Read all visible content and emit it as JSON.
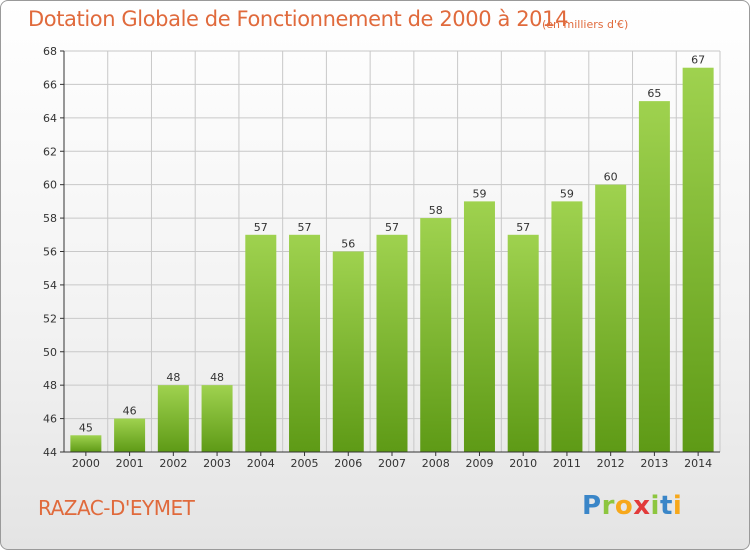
{
  "title": "Dotation Globale de Fonctionnement de 2000 à 2014",
  "subtitle": "(en milliers d'€)",
  "commune": "RAZAC-D'EYMET",
  "brand": {
    "letters": [
      "P",
      "r",
      "o",
      "x",
      "i",
      "t",
      "i"
    ],
    "colors": [
      "#3a86c8",
      "#8dc63f",
      "#f7a81b",
      "#e23a3a",
      "#8dc63f",
      "#3a86c8",
      "#f7a81b"
    ]
  },
  "colors": {
    "title": "#e06a3c",
    "bar_top": "#9fd24f",
    "bar_bottom": "#5e9a16",
    "grid": "#c8c8c8",
    "axis": "#333333"
  },
  "chart_data": {
    "type": "bar",
    "categories": [
      "2000",
      "2001",
      "2002",
      "2003",
      "2004",
      "2005",
      "2006",
      "2007",
      "2008",
      "2009",
      "2010",
      "2011",
      "2012",
      "2013",
      "2014"
    ],
    "values": [
      45,
      46,
      48,
      48,
      57,
      57,
      56,
      57,
      58,
      59,
      57,
      59,
      60,
      65,
      67
    ],
    "ylim": [
      44,
      68
    ],
    "yticks": [
      44,
      46,
      48,
      50,
      52,
      54,
      56,
      58,
      60,
      62,
      64,
      66,
      68
    ],
    "grid": true,
    "data_labels": true,
    "xlabel": "",
    "ylabel": ""
  }
}
